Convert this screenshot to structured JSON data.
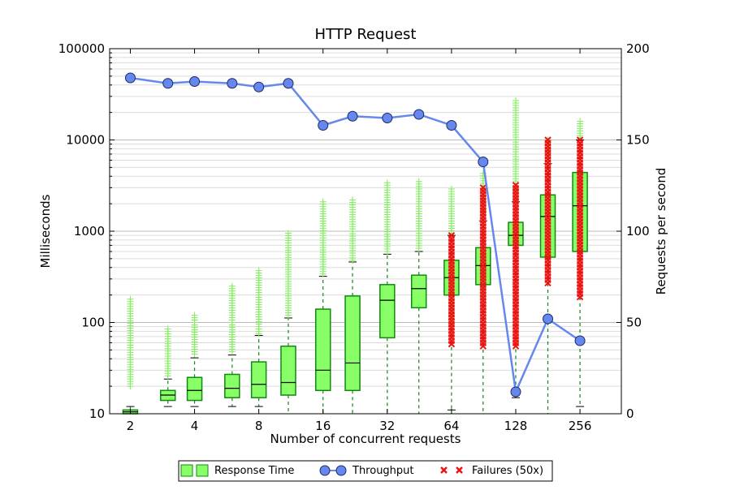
{
  "chart_data": {
    "type": "box",
    "title": "HTTP Request",
    "xlabel": "Number of concurrent requests",
    "ylabel": "Milliseconds",
    "y2label": "Requests per second",
    "x_scale": "log2",
    "x_range": [
      1.6,
      400
    ],
    "x_ticks": [
      2,
      4,
      8,
      16,
      32,
      64,
      128,
      256
    ],
    "y_scale": "log10",
    "y_range": [
      10,
      100000
    ],
    "y_ticks": [
      10,
      100,
      1000,
      10000,
      100000
    ],
    "y2_range": [
      0,
      200
    ],
    "y2_ticks": [
      0,
      50,
      100,
      150,
      200
    ],
    "grid": "horizontal",
    "legend_position": "bottom",
    "legend": {
      "response_time": "Response Time",
      "throughput": "Throughput",
      "failures": "Failures (50x)"
    },
    "colors": {
      "box_fill": "#88ff66",
      "box_edge": "#118811",
      "whisker": "#118811",
      "outlier": "#88ee66",
      "throughput": "#6688ee",
      "failure": "#ee1111"
    },
    "response_time": [
      {
        "x": 2,
        "whisker_low": 10,
        "q1": 10,
        "median": 10.5,
        "q3": 11,
        "whisker_high": 12,
        "outliers_low": null,
        "outliers_high": [
          20,
          180
        ]
      },
      {
        "x": 3,
        "whisker_low": 12,
        "q1": 14,
        "median": 16,
        "q3": 18,
        "whisker_high": 24,
        "outliers_low": null,
        "outliers_high": [
          26,
          85
        ]
      },
      {
        "x": 4,
        "whisker_low": 12,
        "q1": 14,
        "median": 18,
        "q3": 25,
        "whisker_high": 41,
        "outliers_low": null,
        "outliers_high": [
          45,
          120
        ]
      },
      {
        "x": 6,
        "whisker_low": 12,
        "q1": 15,
        "median": 19,
        "q3": 27,
        "whisker_high": 44,
        "outliers_low": null,
        "outliers_high": [
          48,
          250
        ]
      },
      {
        "x": 8,
        "whisker_low": 12,
        "q1": 15,
        "median": 21,
        "q3": 37,
        "whisker_high": 72,
        "outliers_low": null,
        "outliers_high": [
          75,
          370
        ]
      },
      {
        "x": 11,
        "whisker_low": 10,
        "q1": 16,
        "median": 22,
        "q3": 55,
        "whisker_high": 112,
        "outliers_low": null,
        "outliers_high": [
          120,
          950
        ]
      },
      {
        "x": 16,
        "whisker_low": 10,
        "q1": 18,
        "median": 30,
        "q3": 140,
        "whisker_high": 320,
        "outliers_low": null,
        "outliers_high": [
          340,
          2100
        ]
      },
      {
        "x": 22,
        "whisker_low": 10,
        "q1": 18,
        "median": 36,
        "q3": 195,
        "whisker_high": 460,
        "outliers_low": null,
        "outliers_high": [
          480,
          2200
        ]
      },
      {
        "x": 32,
        "whisker_low": 10,
        "q1": 68,
        "median": 175,
        "q3": 260,
        "whisker_high": 560,
        "outliers_low": null,
        "outliers_high": [
          600,
          3400
        ]
      },
      {
        "x": 45,
        "whisker_low": 10,
        "q1": 145,
        "median": 235,
        "q3": 330,
        "whisker_high": 600,
        "outliers_low": null,
        "outliers_high": [
          650,
          3500
        ]
      },
      {
        "x": 64,
        "whisker_low": 11,
        "q1": 200,
        "median": 310,
        "q3": 480,
        "whisker_high": 900,
        "outliers_low": [
          95,
          180
        ],
        "outliers_high": [
          950,
          2900
        ]
      },
      {
        "x": 90,
        "whisker_low": 10,
        "q1": 260,
        "median": 420,
        "q3": 660,
        "whisker_high": 1300,
        "outliers_low": [
          190,
          240
        ],
        "outliers_high": [
          1400,
          4300
        ]
      },
      {
        "x": 128,
        "whisker_low": 15,
        "q1": 700,
        "median": 900,
        "q3": 1250,
        "whisker_high": 2100,
        "outliers_low": null,
        "outliers_high": [
          2300,
          27000
        ]
      },
      {
        "x": 181,
        "whisker_low": 10,
        "q1": 520,
        "median": 1450,
        "q3": 2500,
        "whisker_high": 5500,
        "outliers_low": null,
        "outliers_high": [
          6000,
          10000
        ]
      },
      {
        "x": 256,
        "whisker_low": 12,
        "q1": 600,
        "median": 1900,
        "q3": 4400,
        "whisker_high": 10000,
        "outliers_low": null,
        "outliers_high": [
          10500,
          16000
        ]
      }
    ],
    "failures": [
      {
        "x": 64,
        "min": 58,
        "max": 900
      },
      {
        "x": 90,
        "min": 55,
        "max": 3000
      },
      {
        "x": 128,
        "min": 55,
        "max": 3200
      },
      {
        "x": 181,
        "min": 270,
        "max": 10000
      },
      {
        "x": 256,
        "min": 190,
        "max": 10000
      }
    ],
    "throughput": [
      {
        "x": 2,
        "y": 184
      },
      {
        "x": 3,
        "y": 181
      },
      {
        "x": 4,
        "y": 182
      },
      {
        "x": 6,
        "y": 181
      },
      {
        "x": 8,
        "y": 179
      },
      {
        "x": 11,
        "y": 181
      },
      {
        "x": 16,
        "y": 158
      },
      {
        "x": 22,
        "y": 163
      },
      {
        "x": 32,
        "y": 162
      },
      {
        "x": 45,
        "y": 164
      },
      {
        "x": 64,
        "y": 158
      },
      {
        "x": 90,
        "y": 138
      },
      {
        "x": 128,
        "y": 12
      },
      {
        "x": 181,
        "y": 52
      },
      {
        "x": 256,
        "y": 40
      }
    ]
  }
}
